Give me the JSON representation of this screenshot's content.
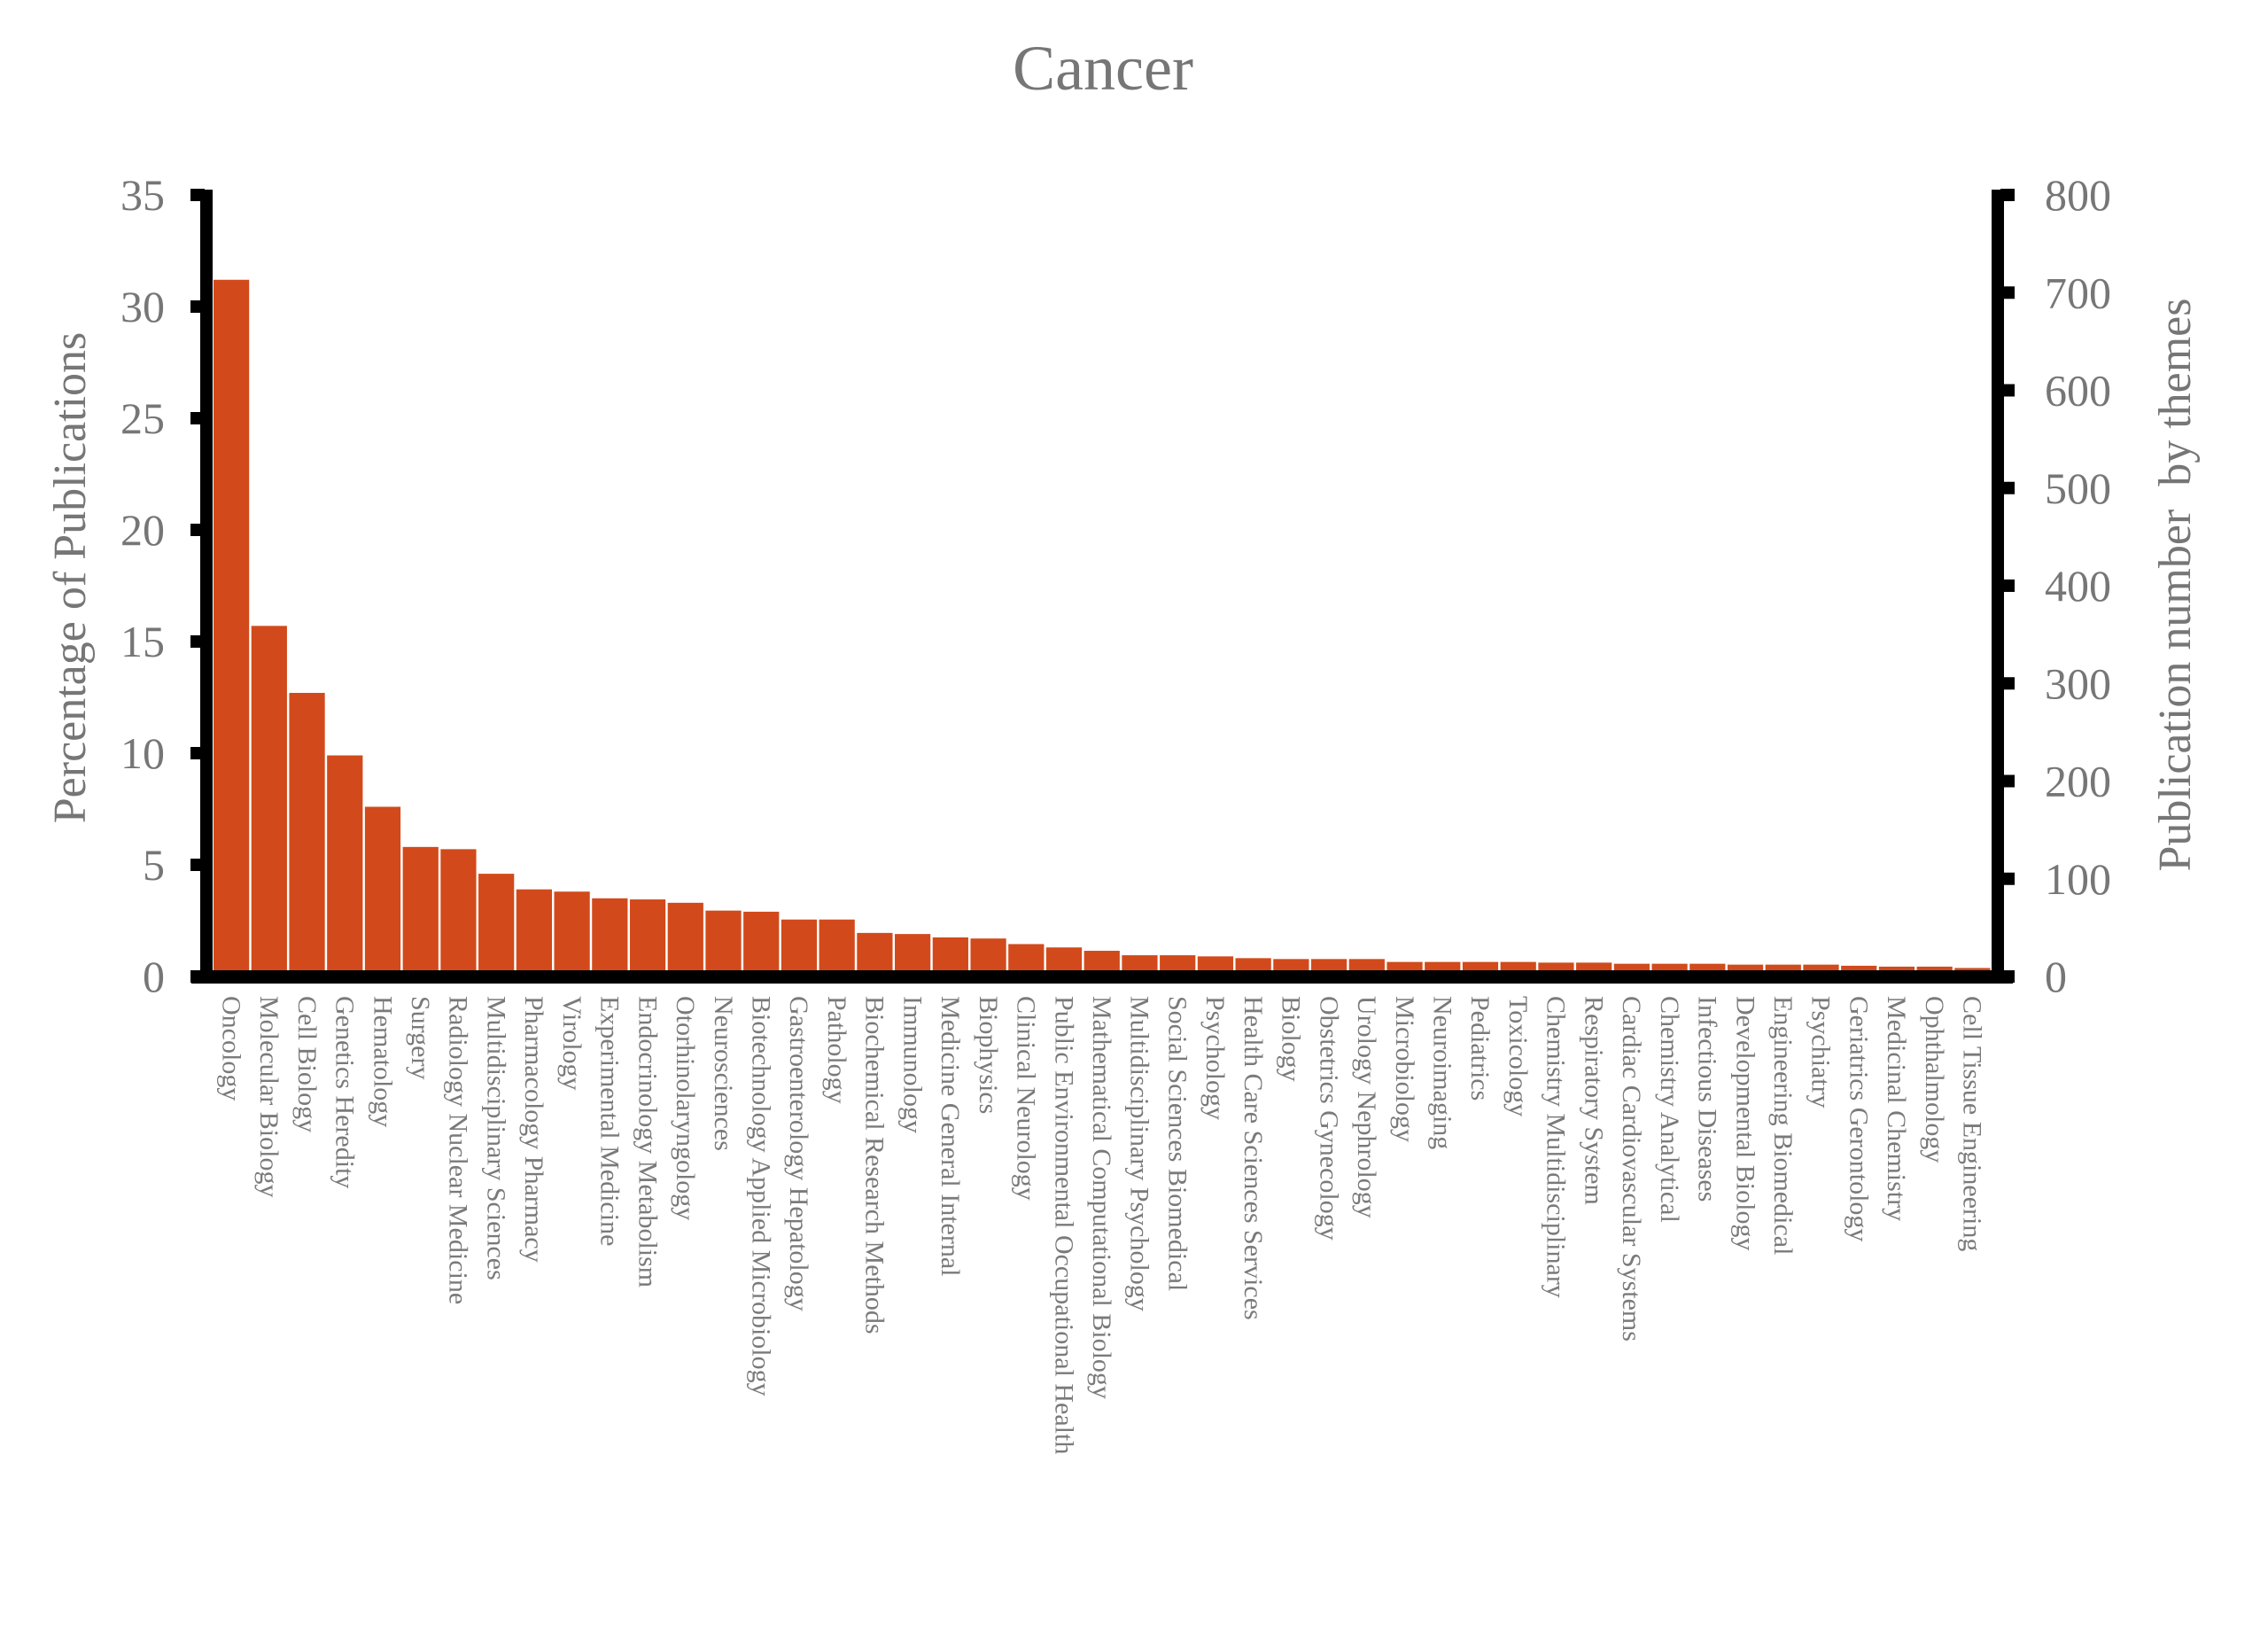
{
  "chart_data": {
    "type": "bar",
    "title": "Cancer",
    "xlabel": "",
    "ylabel": "Percentage of Publications",
    "ylabel_right": "Publication number  by themes",
    "ylim": [
      0,
      35
    ],
    "ylim_right": [
      0,
      800
    ],
    "yticks": [
      0,
      5,
      10,
      15,
      20,
      25,
      30,
      35
    ],
    "yticks_right": [
      0,
      100,
      200,
      300,
      400,
      500,
      600,
      700,
      800
    ],
    "grid": false,
    "legend": null,
    "bar_color": "#D24A1B",
    "categories": [
      "Oncology",
      "Molecular Biology",
      "Cell Biology",
      "Genetics Heredity",
      "Hematology",
      "Surgery",
      "Radiology Nuclear Medicine",
      "Multidisciplinary Sciences",
      "Pharmacology Pharmacy",
      "Virology",
      "Experimental Medicine",
      "Endocrinology Metabolism",
      "Otorhinolaryngology",
      "Neurosciences",
      "Biotechnology Applied Microbiology",
      "Gastroenterology Hepatology",
      "Pathology",
      "Biochemical Research Methods",
      "Immunology",
      "Medicine General Internal",
      "Biophysics",
      "Clinical Neurology",
      "Public Environmental Occupational Health",
      "Mathematical Computational Biology",
      "Multidisciplinary Psychology",
      "Social Sciences Biomedical",
      "Psychology",
      "Health Care Sciences Services",
      "Biology",
      "Obstetrics Gynecology",
      "Urology Nephrology",
      "Microbiology",
      "Neuroimaging",
      "Pediatrics",
      "Toxicology",
      "Chemistry Multidisciplinary",
      "Respiratory System",
      "Cardiac Cardiovascular Systems",
      "Chemistry Analytical",
      "Infectious Diseases",
      "Developmental Biology",
      "Engineering Biomedical",
      "Psychiatry",
      "Geriatrics Gerontology",
      "Medicinal Chemistry",
      "Ophthalmology",
      "Cell Tissue Engineering"
    ],
    "values": [
      31.2,
      15.7,
      12.7,
      9.9,
      7.6,
      5.8,
      5.7,
      4.6,
      3.9,
      3.8,
      3.5,
      3.45,
      3.3,
      2.95,
      2.9,
      2.55,
      2.55,
      1.95,
      1.9,
      1.75,
      1.7,
      1.45,
      1.3,
      1.15,
      0.95,
      0.95,
      0.9,
      0.82,
      0.78,
      0.78,
      0.78,
      0.65,
      0.65,
      0.65,
      0.65,
      0.62,
      0.62,
      0.57,
      0.57,
      0.57,
      0.53,
      0.53,
      0.53,
      0.48,
      0.44,
      0.44,
      0.38
    ]
  }
}
